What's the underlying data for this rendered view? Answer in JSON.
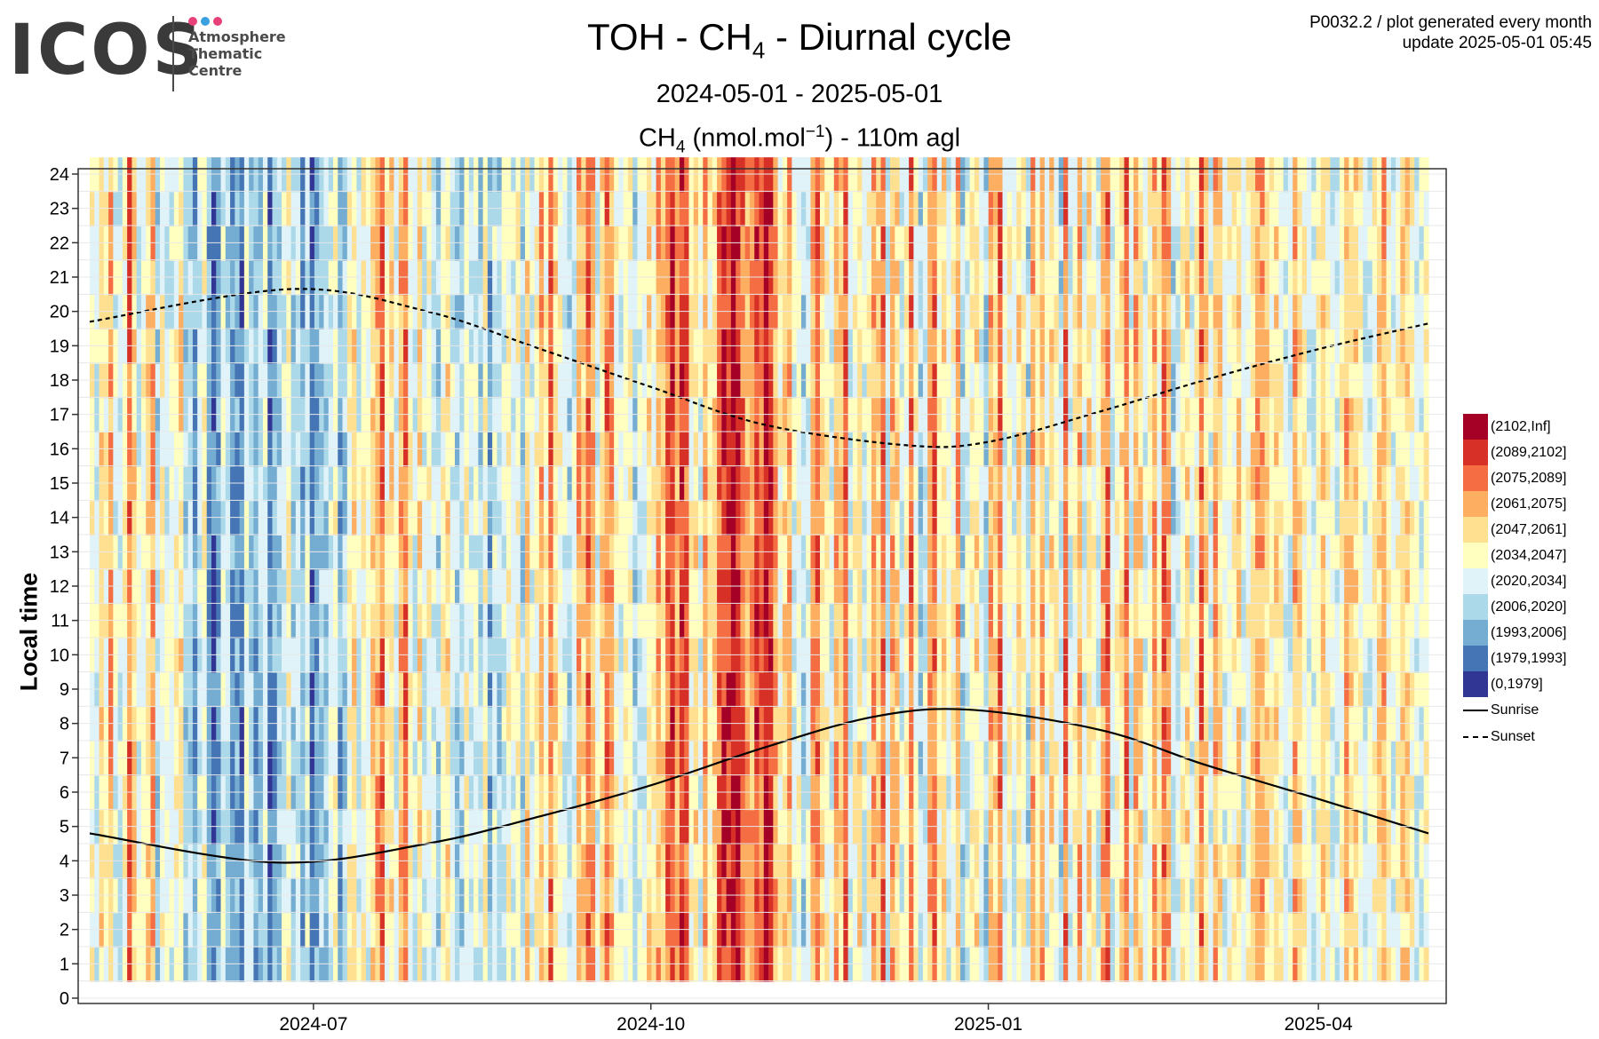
{
  "header": {
    "logo_text": "ICOS",
    "logo_sub_lines": [
      "Atmosphere",
      "Thematic",
      "Centre"
    ],
    "dot_colors": [
      "#e8417a",
      "#3aa0e0",
      "#e8417a"
    ],
    "meta_line1": "P0032.2 / plot generated every month",
    "meta_line2": "update  2025-05-01 05:45"
  },
  "chart_data": {
    "type": "heatmap",
    "title_parts": [
      "TOH - CH",
      "4",
      " - Diurnal cycle"
    ],
    "subtitle": "2024-05-01 - 2025-05-01",
    "unit_parts": [
      "CH",
      "4",
      " (nmol.mol",
      "−1",
      ") - 110m agl"
    ],
    "ylabel": "Local time",
    "xrange": [
      "2024-05-01",
      "2025-05-01"
    ],
    "ylim": [
      0,
      24
    ],
    "x_ticks": [
      {
        "date": "2024-07-01",
        "label": "2024-07"
      },
      {
        "date": "2024-10-01",
        "label": "2024-10"
      },
      {
        "date": "2025-01-01",
        "label": "2025-01"
      },
      {
        "date": "2025-04-01",
        "label": "2025-04"
      }
    ],
    "y_ticks": [
      "0",
      "1",
      "2",
      "3",
      "4",
      "5",
      "6",
      "7",
      "8",
      "9",
      "10",
      "11",
      "12",
      "13",
      "14",
      "15",
      "16",
      "17",
      "18",
      "19",
      "20",
      "21",
      "22",
      "23",
      "24"
    ],
    "bins": [
      {
        "label": "(2102,Inf]",
        "color": "#a50026"
      },
      {
        "label": "(2089,2102]",
        "color": "#d73027"
      },
      {
        "label": "(2075,2089]",
        "color": "#f46d43"
      },
      {
        "label": "(2061,2075]",
        "color": "#fdae61"
      },
      {
        "label": "(2047,2061]",
        "color": "#fee090"
      },
      {
        "label": "(2034,2047]",
        "color": "#ffffbf"
      },
      {
        "label": "(2020,2034]",
        "color": "#e0f3f8"
      },
      {
        "label": "(2006,2020]",
        "color": "#abd9e9"
      },
      {
        "label": "(1993,2006]",
        "color": "#74add1"
      },
      {
        "label": "(1979,1993]",
        "color": "#4575b4"
      },
      {
        "label": "(0,1979]",
        "color": "#313695"
      }
    ],
    "lines": [
      {
        "name": "Sunrise",
        "style": "solid",
        "points": [
          [
            "2024-05-01",
            4.8
          ],
          [
            "2024-06-21",
            3.95
          ],
          [
            "2024-08-01",
            4.5
          ],
          [
            "2024-09-01",
            5.3
          ],
          [
            "2024-10-01",
            6.2
          ],
          [
            "2024-11-01",
            7.3
          ],
          [
            "2024-12-01",
            8.2
          ],
          [
            "2024-12-27",
            8.4
          ],
          [
            "2025-02-01",
            7.8
          ],
          [
            "2025-03-01",
            6.8
          ],
          [
            "2025-04-01",
            5.8
          ],
          [
            "2025-05-01",
            4.8
          ]
        ]
      },
      {
        "name": "Sunset",
        "style": "dashed",
        "points": [
          [
            "2024-05-01",
            19.7
          ],
          [
            "2024-06-25",
            20.65
          ],
          [
            "2024-08-01",
            20.0
          ],
          [
            "2024-09-01",
            18.9
          ],
          [
            "2024-10-01",
            17.8
          ],
          [
            "2024-11-01",
            16.7
          ],
          [
            "2024-12-10",
            16.1
          ],
          [
            "2025-01-01",
            16.2
          ],
          [
            "2025-02-01",
            17.1
          ],
          [
            "2025-03-01",
            18.0
          ],
          [
            "2025-04-01",
            18.9
          ],
          [
            "2025-05-01",
            19.65
          ]
        ]
      }
    ],
    "column_bins": [
      5,
      6,
      4,
      5,
      3,
      6,
      6,
      5,
      2,
      4,
      6,
      5,
      4,
      3,
      7,
      5,
      6,
      6,
      5,
      4,
      7,
      7,
      8,
      6,
      5,
      8,
      9,
      8,
      6,
      7,
      8,
      8,
      9,
      6,
      7,
      8,
      7,
      6,
      9,
      8,
      7,
      6,
      5,
      7,
      6,
      8,
      6,
      9,
      8,
      7,
      7,
      6,
      5,
      8,
      7,
      5,
      4,
      6,
      5,
      6,
      4,
      3,
      2,
      5,
      4,
      6,
      3,
      2,
      5,
      6,
      4,
      6,
      5,
      6,
      7,
      5,
      4,
      6,
      7,
      7,
      5,
      6,
      6,
      7,
      5,
      8,
      6,
      7,
      6,
      5,
      6,
      5,
      7,
      4,
      6,
      5,
      3,
      5,
      2,
      4,
      5,
      6,
      7,
      6,
      3,
      4,
      2,
      3,
      6,
      4,
      2,
      3,
      5,
      6,
      5,
      5,
      7,
      6,
      6,
      4,
      5,
      3,
      4,
      2,
      1,
      3,
      1,
      2,
      5,
      4,
      6,
      3,
      5,
      4,
      2,
      1,
      1,
      0,
      1,
      2,
      3,
      3,
      1,
      2,
      0,
      1,
      3,
      5,
      4,
      3,
      6,
      5,
      7,
      6,
      3,
      2,
      4,
      5,
      6,
      3,
      4,
      2,
      6,
      5,
      4,
      6,
      5,
      3,
      4,
      2,
      7,
      3,
      4,
      6,
      5,
      2,
      5,
      7,
      6,
      3,
      2,
      5,
      4,
      6,
      5,
      3,
      7,
      6,
      5,
      4,
      6,
      7,
      3,
      4,
      2,
      6,
      5,
      6,
      4,
      5,
      7,
      3,
      5,
      3,
      6,
      4,
      5,
      7,
      2,
      6,
      5,
      3,
      6,
      4,
      5,
      6,
      3,
      2,
      6,
      5,
      4,
      2,
      6,
      3,
      4,
      6,
      5,
      3,
      5,
      2,
      3,
      7,
      6,
      5,
      4,
      6,
      5,
      2,
      4,
      6,
      3,
      4,
      6,
      5,
      5,
      4,
      6,
      5,
      4,
      3,
      3,
      4,
      5,
      4,
      5,
      6,
      6,
      3,
      4,
      5,
      6,
      6,
      5,
      4,
      5,
      6,
      6,
      5,
      3,
      4,
      4,
      5,
      6,
      6,
      5,
      4,
      3,
      5,
      6,
      5,
      4,
      4,
      5,
      6,
      6,
      5
    ]
  },
  "colors": {
    "frame": "#333333",
    "grid": "#e8e8e8"
  }
}
